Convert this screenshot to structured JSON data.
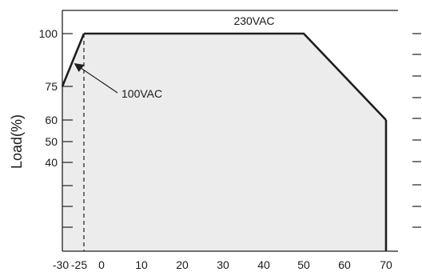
{
  "chart_data": {
    "type": "area",
    "xlabel": "",
    "ylabel": "Load(%)",
    "x_ticks": [
      -30,
      -25,
      0,
      10,
      20,
      30,
      40,
      50,
      60,
      70
    ],
    "x_tick_labels": [
      "-30",
      "-25",
      "0",
      "10",
      "20",
      "30",
      "40",
      "50",
      "60",
      "70"
    ],
    "y_tick_labels": [
      "100",
      "75",
      "60",
      "50",
      "40"
    ],
    "y_tick_values": [
      100,
      75,
      60,
      50,
      40
    ],
    "series": [
      {
        "name": "230VAC",
        "x": [
          -30,
          -25,
          50,
          70,
          70
        ],
        "y": [
          100,
          100,
          100,
          60,
          0
        ]
      },
      {
        "name": "100VAC",
        "x": [
          -30,
          -25
        ],
        "y": [
          75,
          100
        ]
      }
    ],
    "reference_line_x": -25,
    "annotations": [
      {
        "text": "230VAC",
        "target_series": "230VAC"
      },
      {
        "text": "100VAC",
        "target_series": "100VAC",
        "arrow": true
      }
    ],
    "colors": {
      "fill": "#ececec",
      "line": "#1f1f1f",
      "axis": "#222222",
      "text": "#1a1a1a"
    },
    "grid": false
  }
}
